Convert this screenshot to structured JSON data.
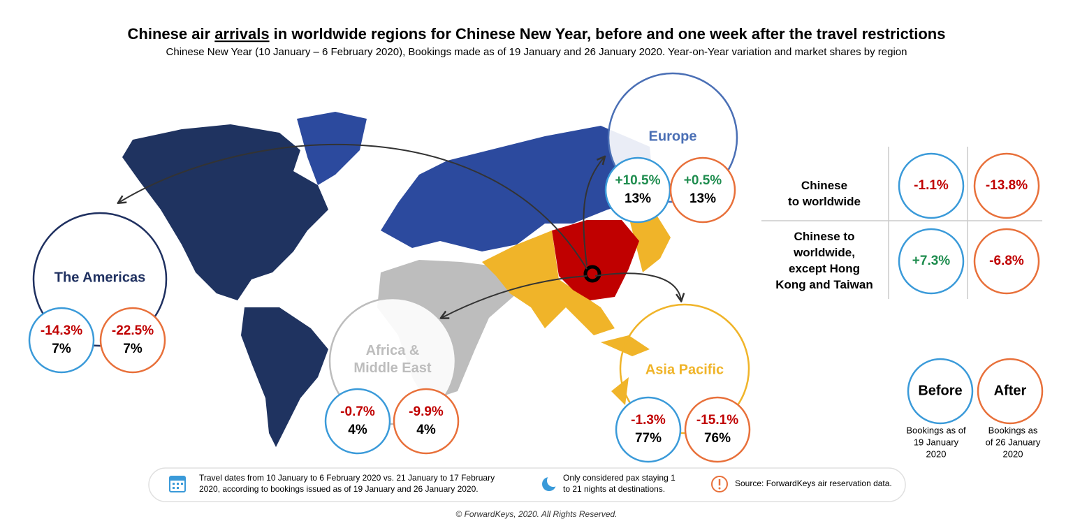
{
  "header": {
    "title": [
      "Chinese air ",
      "arrivals",
      " in worldwide regions for Chinese New Year, before and one week after the travel restrictions"
    ],
    "subtitle": "Chinese New Year (10 January – 6 February 2020), Bookings made as of 19 January and 26 January 2020. Year-on-Year variation and market shares by region"
  },
  "regions": [
    {
      "name": [
        "Europe"
      ],
      "before": {
        "change": "+10.5%",
        "share": "13%"
      },
      "after": {
        "change": "+0.5%",
        "share": "13%"
      }
    },
    {
      "name": [
        "The Americas"
      ],
      "before": {
        "change": "-14.3%",
        "share": "7%"
      },
      "after": {
        "change": "-22.5%",
        "share": "7%"
      }
    },
    {
      "name": [
        "Africa &",
        "Middle East"
      ],
      "before": {
        "change": "-0.7%",
        "share": "4%"
      },
      "after": {
        "change": "-9.9%",
        "share": "4%"
      }
    },
    {
      "name": [
        "Asia Pacific"
      ],
      "before": {
        "change": "-1.3%",
        "share": "77%"
      },
      "after": {
        "change": "-15.1%",
        "share": "76%"
      }
    }
  ],
  "summary": {
    "rows": [
      {
        "label": [
          "Chinese",
          "to worldwide"
        ],
        "before": "-1.1%",
        "after": "-13.8%"
      },
      {
        "label": [
          "Chinese to",
          "worldwide,",
          "except Hong",
          "Kong and Taiwan"
        ],
        "before": "+7.3%",
        "after": "-6.8%"
      }
    ]
  },
  "legend": {
    "before": {
      "label": "Before",
      "caption": [
        "Bookings as of",
        "19 January",
        "2020"
      ]
    },
    "after": {
      "label": "After",
      "caption": [
        "Bookings as",
        "of 26 January",
        "2020"
      ]
    }
  },
  "notes": [
    [
      "Travel dates from 10 January to 6 February 2020 vs. 21 January to 17 February",
      "2020, according to bookings issued as of 19 January and 26 January 2020."
    ],
    [
      "Only considered pax staying 1",
      "to 21 nights at destinations."
    ],
    [
      "Source: ForwardKeys air reservation data."
    ]
  ],
  "footer": "© ForwardKeys, 2020. All Rights Reserved."
}
